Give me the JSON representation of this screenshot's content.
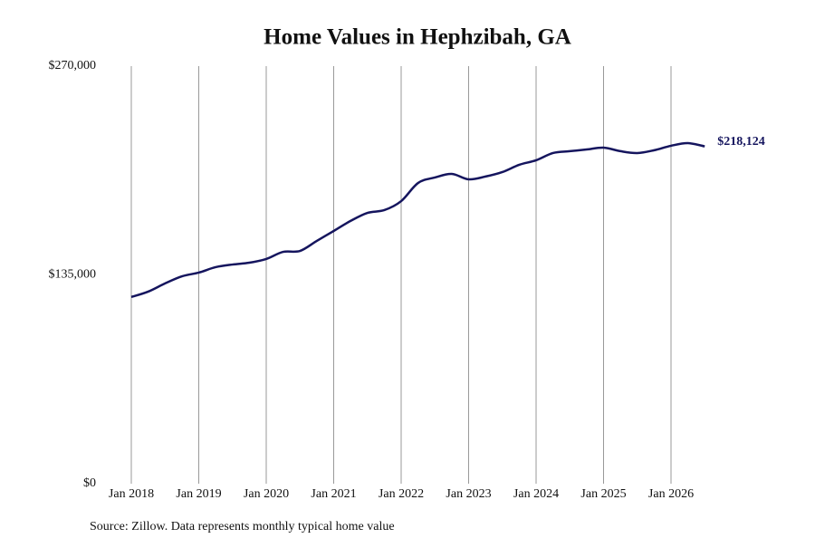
{
  "chart_data": {
    "type": "line",
    "title": "Home Values in Hephzibah, GA",
    "source": "Source: Zillow. Data represents monthly typical home value",
    "x": [
      "2018-01",
      "2018-04",
      "2018-07",
      "2018-10",
      "2019-01",
      "2019-04",
      "2019-07",
      "2019-10",
      "2020-01",
      "2020-04",
      "2020-07",
      "2020-10",
      "2021-01",
      "2021-04",
      "2021-07",
      "2021-10",
      "2022-01",
      "2022-04",
      "2022-07",
      "2022-10",
      "2023-01",
      "2023-04",
      "2023-07",
      "2023-10",
      "2024-01",
      "2024-04",
      "2024-07",
      "2024-10",
      "2025-01",
      "2025-04",
      "2025-07",
      "2025-10",
      "2026-01",
      "2026-04",
      "2026-07"
    ],
    "series": [
      {
        "name": "Home value",
        "color": "#15155e",
        "values": [
          120700,
          124200,
          129500,
          134100,
          136500,
          140000,
          141700,
          142900,
          145300,
          149900,
          150500,
          157000,
          163400,
          169900,
          175100,
          176900,
          182700,
          194400,
          198000,
          200300,
          196800,
          198600,
          201500,
          206200,
          209100,
          213800,
          215000,
          216100,
          217300,
          215000,
          213800,
          215600,
          218500,
          220200,
          218124
        ]
      }
    ],
    "end_label": "$218,124",
    "xticks": [
      {
        "value": "2018-01",
        "label": "Jan 2018"
      },
      {
        "value": "2019-01",
        "label": "Jan 2019"
      },
      {
        "value": "2020-01",
        "label": "Jan 2020"
      },
      {
        "value": "2021-01",
        "label": "Jan 2021"
      },
      {
        "value": "2022-01",
        "label": "Jan 2022"
      },
      {
        "value": "2023-01",
        "label": "Jan 2023"
      },
      {
        "value": "2024-01",
        "label": "Jan 2024"
      },
      {
        "value": "2025-01",
        "label": "Jan 2025"
      },
      {
        "value": "2026-01",
        "label": "Jan 2026"
      }
    ],
    "ylim": [
      0,
      270000
    ],
    "yticks": [
      {
        "value": 0,
        "label": "$0"
      },
      {
        "value": 135000,
        "label": "$135,000"
      },
      {
        "value": 270000,
        "label": "$270,000"
      }
    ],
    "grid": "x"
  }
}
